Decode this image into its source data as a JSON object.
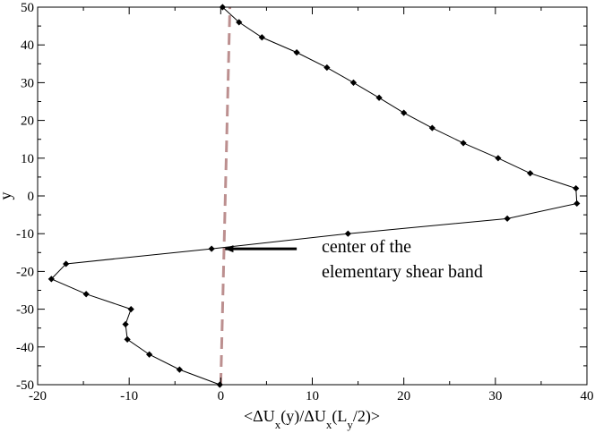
{
  "chart_data": {
    "type": "line",
    "title": "",
    "xlabel_parts": [
      "<ΔU",
      "x",
      "(y)/ΔU",
      "x",
      "(L",
      "y",
      "/2)>"
    ],
    "ylabel": "y",
    "xlim": [
      -20,
      40
    ],
    "ylim": [
      -50,
      50
    ],
    "xticks": [
      -20,
      -10,
      0,
      10,
      20,
      30,
      40
    ],
    "yticks": [
      -50,
      -40,
      -30,
      -20,
      -10,
      0,
      10,
      20,
      30,
      40,
      50
    ],
    "series": [
      {
        "marker": "diamond",
        "color": "#000000",
        "points": [
          [
            0.2,
            50
          ],
          [
            2.0,
            46
          ],
          [
            4.5,
            42
          ],
          [
            8.3,
            38
          ],
          [
            11.6,
            34
          ],
          [
            14.5,
            30
          ],
          [
            17.3,
            26
          ],
          [
            20.0,
            22
          ],
          [
            23.1,
            18
          ],
          [
            26.5,
            14
          ],
          [
            30.3,
            10
          ],
          [
            33.8,
            6
          ],
          [
            38.8,
            2
          ],
          [
            38.9,
            -2
          ],
          [
            31.3,
            -6
          ],
          [
            13.9,
            -10
          ],
          [
            -1.0,
            -14
          ],
          [
            -16.9,
            -18
          ],
          [
            -18.5,
            -22
          ],
          [
            -14.7,
            -26
          ],
          [
            -9.8,
            -30
          ],
          [
            -10.4,
            -34
          ],
          [
            -10.2,
            -38
          ],
          [
            -7.8,
            -42
          ],
          [
            -4.5,
            -46
          ],
          [
            -0.1,
            -50
          ]
        ]
      }
    ],
    "reference_line": {
      "points": [
        [
          0.0,
          -50
        ],
        [
          1.0,
          50
        ]
      ],
      "color": "#bc8f8f",
      "style": "dashed"
    },
    "annotation": {
      "lines": [
        "center of the",
        "elementary shear band"
      ],
      "arrow_tail": [
        8.3,
        -14
      ],
      "arrow_head": [
        0.5,
        -14
      ]
    },
    "grid": false
  }
}
